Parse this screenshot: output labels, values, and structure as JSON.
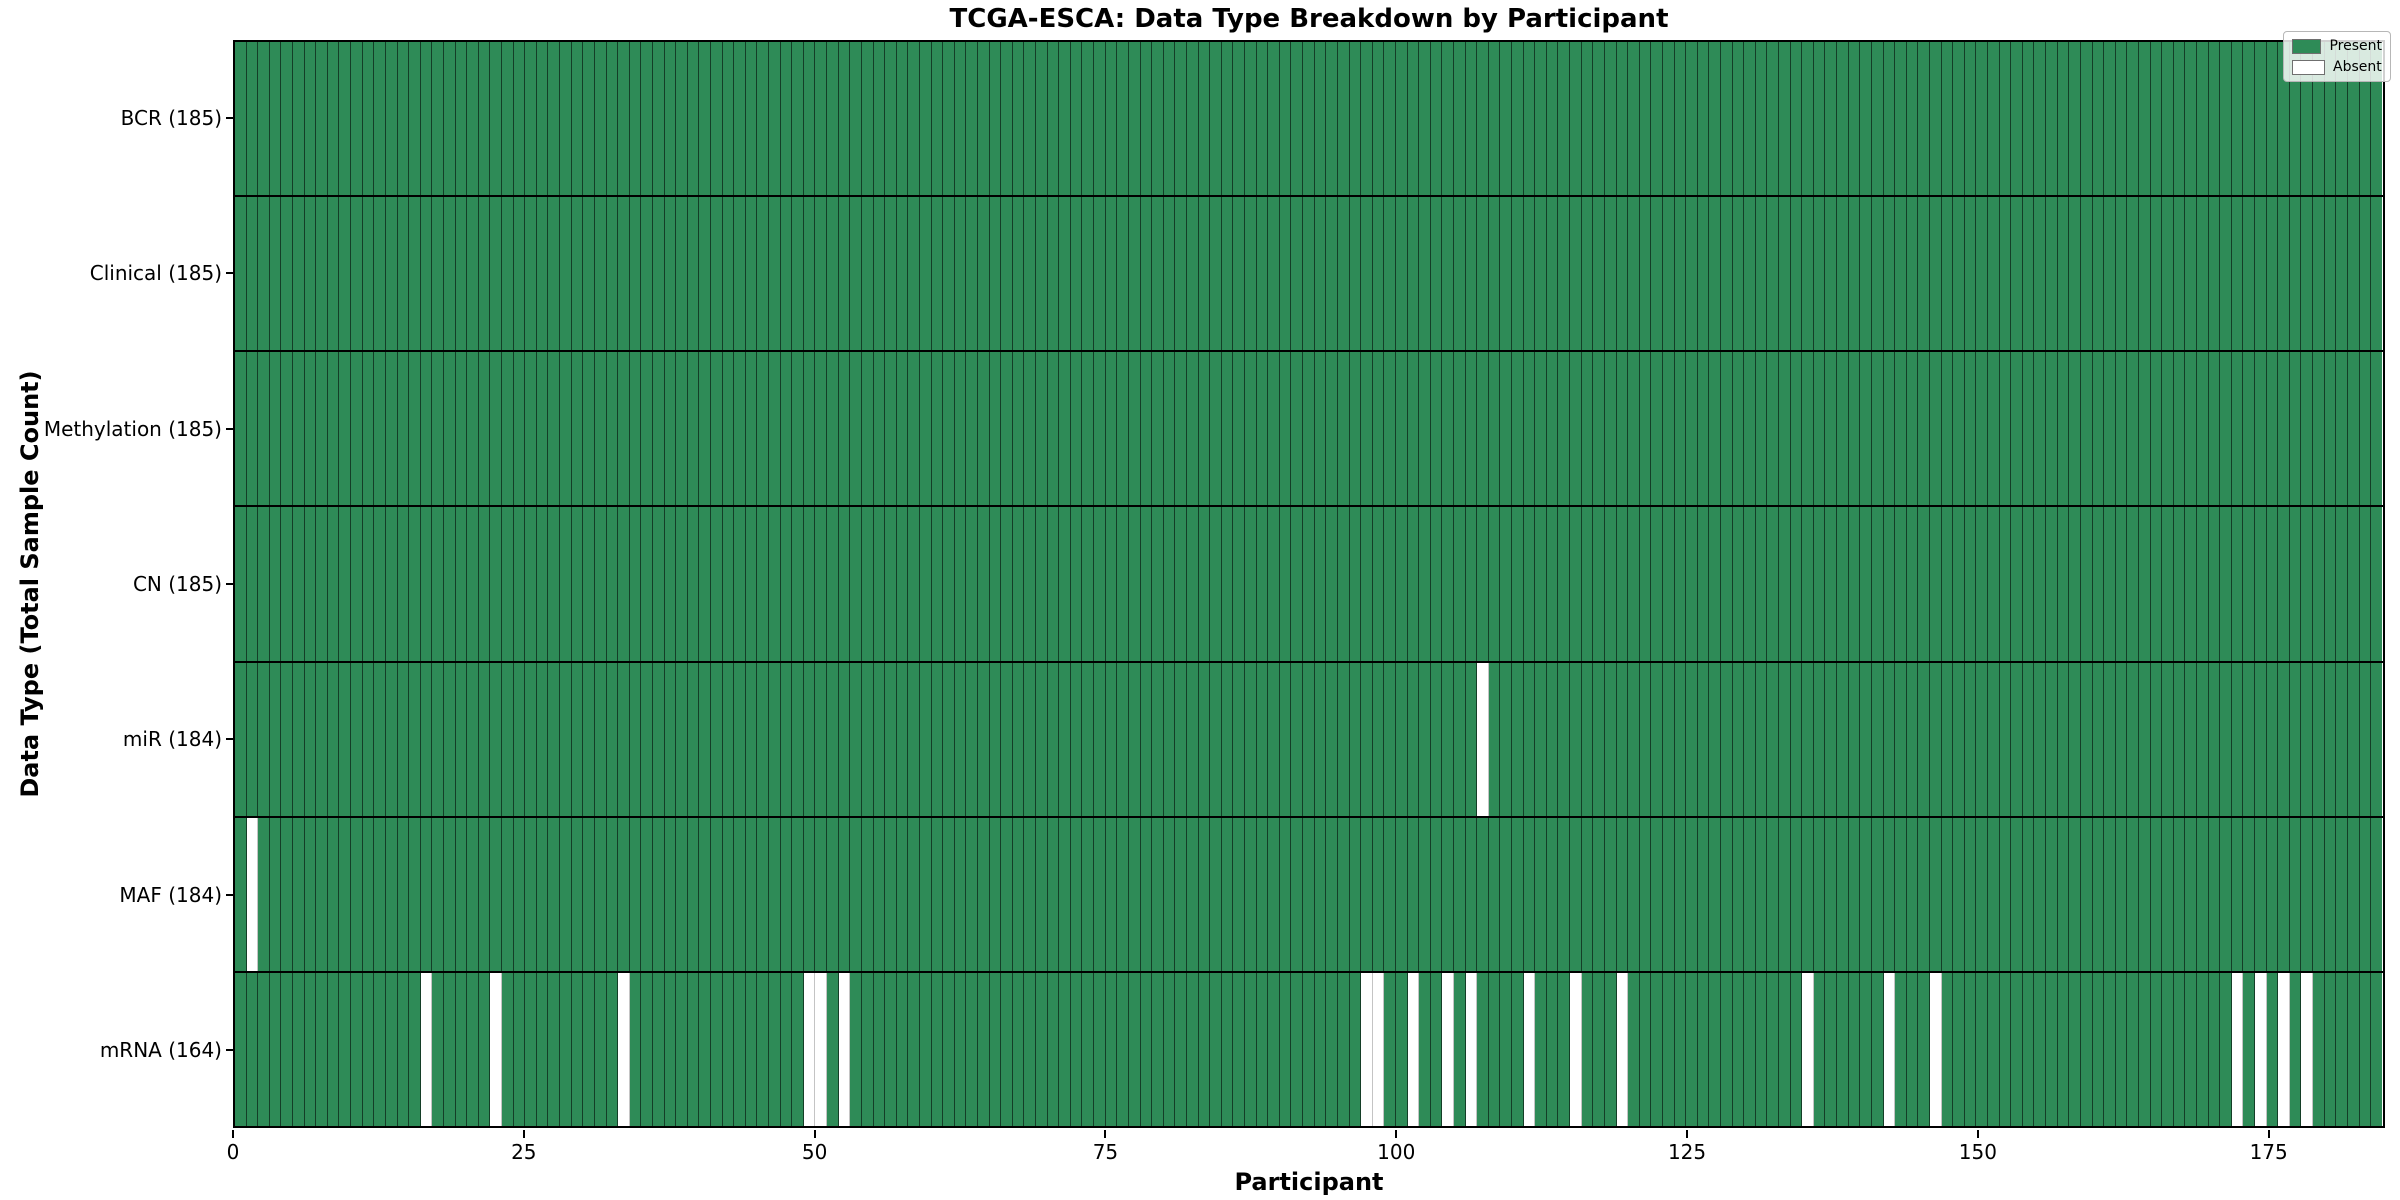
{
  "chart_data": {
    "type": "heatmap",
    "title": "TCGA-ESCA: Data Type Breakdown by Participant",
    "xlabel": "Participant",
    "ylabel": "Data Type (Total Sample Count)",
    "n_participants": 185,
    "x_ticks": [
      0,
      25,
      50,
      75,
      100,
      125,
      150,
      175
    ],
    "xlim": [
      0,
      185
    ],
    "grid": false,
    "legend_position": "upper right",
    "legend": [
      {
        "label": "Present",
        "color": "#2e8b57"
      },
      {
        "label": "Absent",
        "color": "#ffffff"
      }
    ],
    "rows": [
      {
        "label": "BCR (185)",
        "data_type": "BCR",
        "present_count": 185,
        "absent_participants": []
      },
      {
        "label": "Clinical (185)",
        "data_type": "Clinical",
        "present_count": 185,
        "absent_participants": []
      },
      {
        "label": "Methylation (185)",
        "data_type": "Methylation",
        "present_count": 185,
        "absent_participants": []
      },
      {
        "label": "CN (185)",
        "data_type": "CN",
        "present_count": 185,
        "absent_participants": []
      },
      {
        "label": "miR (184)",
        "data_type": "miR",
        "present_count": 184,
        "absent_participants": [
          107
        ]
      },
      {
        "label": "MAF (184)",
        "data_type": "MAF",
        "present_count": 184,
        "absent_participants": [
          1
        ]
      },
      {
        "label": "mRNA (164)",
        "data_type": "mRNA",
        "present_count": 164,
        "absent_participants": [
          16,
          22,
          33,
          49,
          50,
          52,
          97,
          98,
          101,
          104,
          106,
          111,
          115,
          119,
          135,
          142,
          146,
          172,
          174,
          176,
          178
        ]
      }
    ],
    "colors": {
      "present": "#2e8b57",
      "absent": "#ffffff",
      "cell_edge": "rgba(0,0,0,0.55)",
      "row_divider": "#000000",
      "background": "#ffffff"
    }
  }
}
